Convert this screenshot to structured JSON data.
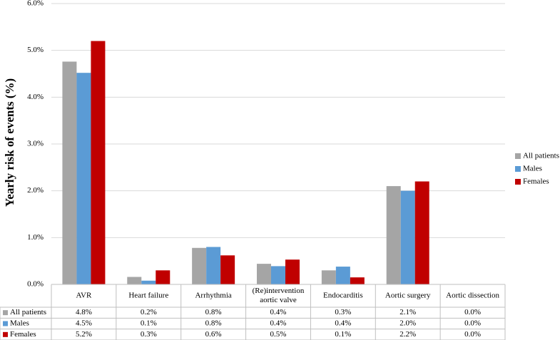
{
  "chart_data": {
    "type": "bar",
    "title": "",
    "xlabel": "",
    "ylabel": "Yearly risk of events (%)",
    "ylim": [
      0,
      6
    ],
    "y_tick_values": [
      0,
      1,
      2,
      3,
      4,
      5,
      6
    ],
    "y_tick_labels": [
      "0.0%",
      "1.0%",
      "2.0%",
      "3.0%",
      "4.0%",
      "5.0%",
      "6.0%"
    ],
    "grid": true,
    "legend_position": "right",
    "categories": [
      "AVR",
      "Heart failure",
      "Arrhythmia",
      "(Re)intervention aortic valve",
      "Endocarditis",
      "Aortic surgery",
      "Aortic dissection"
    ],
    "category_display": [
      [
        "AVR"
      ],
      [
        "Heart failure"
      ],
      [
        "Arrhythmia"
      ],
      [
        "(Re)intervention",
        "aortic valve"
      ],
      [
        "Endocarditis"
      ],
      [
        "Aortic surgery"
      ],
      [
        "Aortic dissection"
      ]
    ],
    "series": [
      {
        "name": "All patients",
        "color": "#a5a5a5",
        "values": [
          4.76,
          0.16,
          0.78,
          0.44,
          0.3,
          2.1,
          0.0
        ],
        "labels": [
          "4.8%",
          "0.2%",
          "0.8%",
          "0.4%",
          "0.3%",
          "2.1%",
          "0.0%"
        ]
      },
      {
        "name": "Males",
        "color": "#5b9bd5",
        "values": [
          4.52,
          0.08,
          0.8,
          0.39,
          0.38,
          2.0,
          0.0
        ],
        "labels": [
          "4.5%",
          "0.1%",
          "0.8%",
          "0.4%",
          "0.4%",
          "2.0%",
          "0.0%"
        ]
      },
      {
        "name": "Females",
        "color": "#c00000",
        "values": [
          5.2,
          0.3,
          0.62,
          0.53,
          0.15,
          2.2,
          0.0
        ],
        "labels": [
          "5.2%",
          "0.3%",
          "0.6%",
          "0.5%",
          "0.1%",
          "2.2%",
          "0.0%"
        ]
      }
    ]
  }
}
